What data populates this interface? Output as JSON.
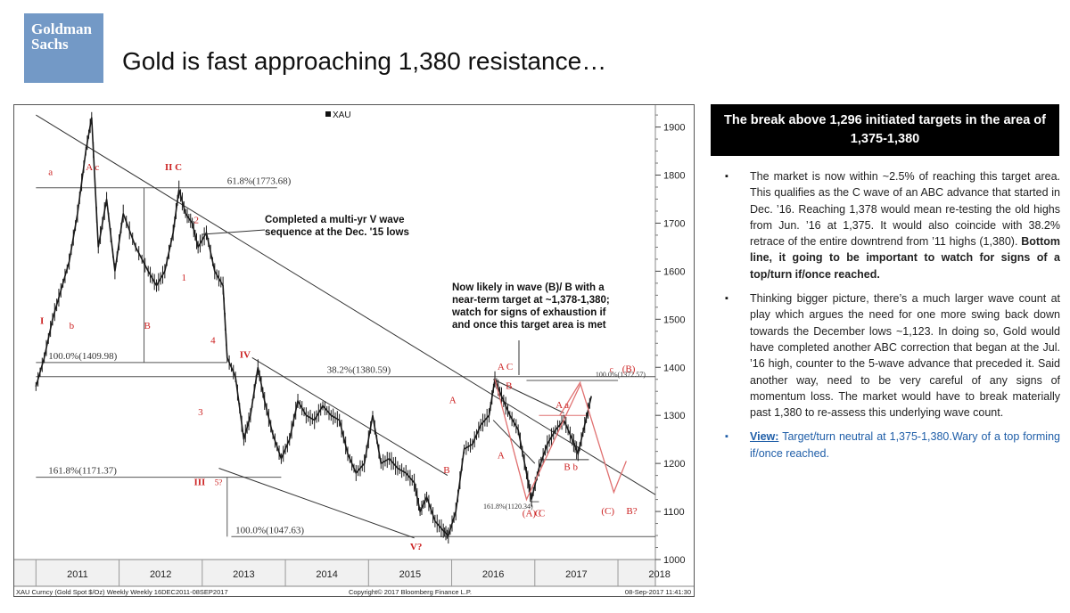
{
  "logo": {
    "line1": "Goldman",
    "line2": "Sachs"
  },
  "title": "Gold is fast approaching 1,380 resistance…",
  "side_header": "The break above 1,296 initiated targets in the area of 1,375-1,380",
  "bullets": [
    {
      "text": "The market is now within ~2.5% of reaching this target area. This qualifies as the C wave of an ABC advance that started in Dec. ’16. Reaching 1,378 would mean re-testing the old highs from Jun. ’16 at 1,375. It would also coincide with 38.2% retrace of the entire downtrend from ’11 highs (1,380). ",
      "bold": "Bottom line, it going to be important to watch for signs of a top/turn if/once reached."
    },
    {
      "text": "Thinking bigger picture, there’s a much larger wave count at play which argues the need for one more swing back down towards the December lows ~1,123. In doing so, Gold would have completed another ABC correction that began at the Jul. ’16 high, counter to the 5-wave advance that preceded it. Said another way, need to be very careful of any signs of momentum loss. The market would have to break materially past 1,380 to re-assess this underlying wave count.",
      "bold": ""
    },
    {
      "label": "View:",
      "text": " Target/turn neutral at 1,375-1,380.Wary of a top forming if/once reached."
    }
  ],
  "chart_data": {
    "type": "line",
    "series": [
      {
        "name": "XAU",
        "x": [
          2011.0,
          2011.1,
          2011.2,
          2011.3,
          2011.4,
          2011.5,
          2011.6,
          2011.67,
          2011.75,
          2011.85,
          2011.95,
          2012.05,
          2012.2,
          2012.35,
          2012.45,
          2012.55,
          2012.65,
          2012.72,
          2012.8,
          2012.88,
          2012.95,
          2013.05,
          2013.15,
          2013.25,
          2013.3,
          2013.4,
          2013.5,
          2013.58,
          2013.67,
          2013.75,
          2013.85,
          2013.95,
          2014.05,
          2014.15,
          2014.25,
          2014.35,
          2014.45,
          2014.55,
          2014.65,
          2014.75,
          2014.85,
          2014.95,
          2015.05,
          2015.15,
          2015.25,
          2015.35,
          2015.45,
          2015.55,
          2015.62,
          2015.7,
          2015.8,
          2015.9,
          2015.96,
          2016.05,
          2016.15,
          2016.25,
          2016.35,
          2016.45,
          2016.52,
          2016.6,
          2016.7,
          2016.8,
          2016.9,
          2016.96,
          2017.05,
          2017.15,
          2017.25,
          2017.35,
          2017.45,
          2017.52,
          2017.6,
          2017.68
        ],
        "y": [
          1360,
          1420,
          1500,
          1560,
          1620,
          1720,
          1850,
          1920,
          1650,
          1750,
          1600,
          1720,
          1650,
          1600,
          1570,
          1600,
          1680,
          1770,
          1720,
          1700,
          1650,
          1680,
          1600,
          1570,
          1420,
          1380,
          1250,
          1300,
          1400,
          1330,
          1260,
          1210,
          1250,
          1330,
          1300,
          1290,
          1320,
          1300,
          1290,
          1220,
          1180,
          1200,
          1300,
          1200,
          1210,
          1190,
          1180,
          1160,
          1100,
          1130,
          1080,
          1060,
          1050,
          1100,
          1230,
          1240,
          1280,
          1300,
          1375,
          1340,
          1300,
          1270,
          1180,
          1125,
          1190,
          1240,
          1270,
          1290,
          1250,
          1220,
          1280,
          1340
        ]
      }
    ],
    "legend": "XAU",
    "ylim": [
      1000,
      1940
    ],
    "xlim": [
      2010.75,
      2018.45
    ],
    "yticks": [
      1000,
      1100,
      1200,
      1300,
      1400,
      1500,
      1600,
      1700,
      1800,
      1900
    ],
    "xticks": [
      "2011",
      "2012",
      "2013",
      "2014",
      "2015",
      "2016",
      "2017",
      "2018"
    ],
    "footer_left": "XAU Curncy (Gold Spot  $/Oz) Weekly  Weekly 16DEC2011-08SEP2017",
    "footer_center": "Copyright© 2017 Bloomberg Finance L.P.",
    "footer_right": "08-Sep-2017 11:41:30",
    "annotations": [
      "61.8%(1773.68)",
      "100.0%(1409.98)",
      "38.2%(1380.59)",
      "161.8%(1171.37)",
      "100.0%(1047.63)",
      "161.8%(1120.34)",
      "100.0%(1372.57)",
      "Completed a multi-yr V wave sequence at the Dec. '15 lows",
      "Now likely in wave (B)/ B with a near-term target at ~1,378-1,380; watch for signs of exhaustion if and once this target area is met"
    ],
    "wave_labels": [
      "I",
      "a",
      "b",
      "A c",
      "B",
      "II C",
      "2",
      "1",
      "4",
      "IV",
      "3",
      "III",
      "5?",
      "V?",
      "A",
      "B",
      "A C",
      "B",
      "A",
      "A a",
      "B b",
      "(A) C",
      "C",
      "c",
      "(B)",
      "(C)",
      "B?"
    ],
    "colors": {
      "price": "#1a1a1a",
      "trend": "#333333",
      "projection": "#e07070",
      "wave_red": "#cc2222"
    }
  }
}
